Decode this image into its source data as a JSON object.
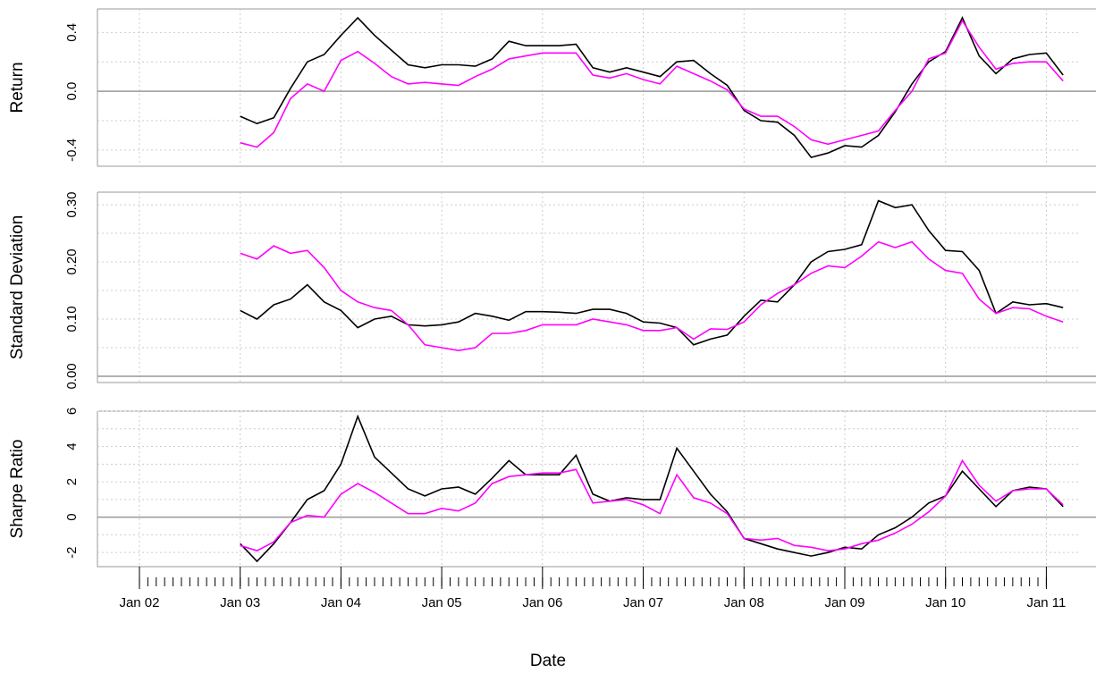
{
  "chart_data": {
    "type": "line",
    "xlabel": "Date",
    "x": [
      "2003-01",
      "2003-03",
      "2003-05",
      "2003-07",
      "2003-09",
      "2003-11",
      "2004-01",
      "2004-03",
      "2004-05",
      "2004-07",
      "2004-09",
      "2004-11",
      "2005-01",
      "2005-03",
      "2005-05",
      "2005-07",
      "2005-09",
      "2005-11",
      "2006-01",
      "2006-03",
      "2006-05",
      "2006-07",
      "2006-09",
      "2006-11",
      "2007-01",
      "2007-03",
      "2007-05",
      "2007-07",
      "2007-09",
      "2007-11",
      "2008-01",
      "2008-03",
      "2008-05",
      "2008-07",
      "2008-09",
      "2008-11",
      "2009-01",
      "2009-03",
      "2009-05",
      "2009-07",
      "2009-09",
      "2009-11",
      "2010-01",
      "2010-03",
      "2010-05",
      "2010-07",
      "2010-09",
      "2010-11",
      "2011-01",
      "2011-03"
    ],
    "xlim": [
      "2001-08",
      "2011-05"
    ],
    "xticks": [
      {
        "value": "2002-01",
        "label": "Jan 02"
      },
      {
        "value": "2003-01",
        "label": "Jan 03"
      },
      {
        "value": "2004-01",
        "label": "Jan 04"
      },
      {
        "value": "2005-01",
        "label": "Jan 05"
      },
      {
        "value": "2006-01",
        "label": "Jan 06"
      },
      {
        "value": "2007-01",
        "label": "Jan 07"
      },
      {
        "value": "2008-01",
        "label": "Jan 08"
      },
      {
        "value": "2009-01",
        "label": "Jan 09"
      },
      {
        "value": "2010-01",
        "label": "Jan 10"
      },
      {
        "value": "2011-01",
        "label": "Jan 11"
      }
    ],
    "grid": true,
    "panels": [
      {
        "ylabel": "Return",
        "ylim": [
          -0.51,
          0.56
        ],
        "hline": 0,
        "yticks": [
          {
            "value": -0.4,
            "label": "-0.4"
          },
          {
            "value": 0,
            "label": "0.0"
          },
          {
            "value": 0.4,
            "label": "0.4"
          }
        ],
        "minor_yticks": [
          -0.2,
          0.2
        ],
        "series": [
          {
            "color": "#000000",
            "values": [
              -0.17,
              -0.22,
              -0.18,
              0.02,
              0.2,
              0.25,
              0.38,
              0.5,
              0.38,
              0.28,
              0.18,
              0.16,
              0.18,
              0.18,
              0.17,
              0.22,
              0.34,
              0.31,
              0.31,
              0.31,
              0.32,
              0.16,
              0.13,
              0.16,
              0.13,
              0.1,
              0.2,
              0.21,
              0.12,
              0.04,
              -0.13,
              -0.2,
              -0.21,
              -0.3,
              -0.45,
              -0.42,
              -0.37,
              -0.38,
              -0.3,
              -0.14,
              0.05,
              0.2,
              0.27,
              0.5,
              0.24,
              0.12,
              0.22,
              0.25,
              0.26,
              0.11
            ]
          },
          {
            "color": "#ff00ff",
            "values": [
              -0.35,
              -0.38,
              -0.28,
              -0.05,
              0.05,
              0.0,
              0.21,
              0.27,
              0.19,
              0.1,
              0.05,
              0.06,
              0.05,
              0.04,
              0.1,
              0.15,
              0.22,
              0.24,
              0.26,
              0.26,
              0.26,
              0.11,
              0.09,
              0.12,
              0.08,
              0.05,
              0.17,
              0.12,
              0.07,
              0.01,
              -0.12,
              -0.17,
              -0.17,
              -0.24,
              -0.33,
              -0.36,
              -0.33,
              -0.3,
              -0.27,
              -0.13,
              0.0,
              0.22,
              0.26,
              0.48,
              0.3,
              0.15,
              0.19,
              0.2,
              0.2,
              0.07
            ]
          }
        ]
      },
      {
        "ylabel": "Standard Deviation",
        "ylim": [
          -0.011,
          0.322
        ],
        "hline": 0,
        "yticks": [
          {
            "value": 0,
            "label": "0.00"
          },
          {
            "value": 0.1,
            "label": "0.10"
          },
          {
            "value": 0.2,
            "label": "0.20"
          },
          {
            "value": 0.3,
            "label": "0.30"
          }
        ],
        "minor_yticks": [
          0.05,
          0.15,
          0.25
        ],
        "series": [
          {
            "color": "#000000",
            "values": [
              0.115,
              0.1,
              0.125,
              0.135,
              0.16,
              0.13,
              0.115,
              0.085,
              0.1,
              0.105,
              0.09,
              0.088,
              0.09,
              0.095,
              0.11,
              0.105,
              0.098,
              0.113,
              0.113,
              0.112,
              0.11,
              0.117,
              0.117,
              0.11,
              0.095,
              0.093,
              0.085,
              0.055,
              0.065,
              0.072,
              0.105,
              0.133,
              0.13,
              0.16,
              0.2,
              0.218,
              0.222,
              0.23,
              0.307,
              0.295,
              0.3,
              0.255,
              0.22,
              0.218,
              0.185,
              0.11,
              0.13,
              0.125,
              0.127,
              0.12
            ]
          },
          {
            "color": "#ff00ff",
            "values": [
              0.215,
              0.205,
              0.228,
              0.215,
              0.22,
              0.19,
              0.15,
              0.13,
              0.12,
              0.115,
              0.09,
              0.055,
              0.05,
              0.045,
              0.05,
              0.075,
              0.075,
              0.08,
              0.09,
              0.09,
              0.09,
              0.1,
              0.095,
              0.09,
              0.08,
              0.08,
              0.085,
              0.065,
              0.083,
              0.082,
              0.095,
              0.125,
              0.145,
              0.16,
              0.18,
              0.193,
              0.19,
              0.21,
              0.235,
              0.225,
              0.235,
              0.205,
              0.185,
              0.18,
              0.135,
              0.11,
              0.12,
              0.118,
              0.105,
              0.095
            ]
          }
        ]
      },
      {
        "ylabel": "Sharpe Ratio",
        "ylim": [
          -2.8,
          6.0
        ],
        "hline": 0,
        "yticks": [
          -2,
          0,
          2,
          4,
          6
        ],
        "minor_yticks": [
          -1,
          1,
          3,
          5
        ],
        "series": [
          {
            "color": "#000000",
            "values": [
              -1.5,
              -2.5,
              -1.5,
              -0.3,
              1.0,
              1.5,
              3.0,
              5.7,
              3.4,
              2.5,
              1.6,
              1.2,
              1.6,
              1.7,
              1.3,
              2.2,
              3.2,
              2.4,
              2.4,
              2.4,
              3.5,
              1.3,
              0.9,
              1.1,
              1.0,
              1.0,
              3.9,
              2.6,
              1.3,
              0.3,
              -1.2,
              -1.5,
              -1.8,
              -2.0,
              -2.2,
              -2.0,
              -1.7,
              -1.8,
              -1.0,
              -0.6,
              0.0,
              0.8,
              1.2,
              2.6,
              1.6,
              0.6,
              1.5,
              1.7,
              1.6,
              0.6
            ]
          },
          {
            "color": "#ff00ff",
            "values": [
              -1.6,
              -1.9,
              -1.4,
              -0.3,
              0.1,
              0.0,
              1.3,
              1.9,
              1.4,
              0.8,
              0.2,
              0.2,
              0.5,
              0.35,
              0.8,
              1.9,
              2.3,
              2.4,
              2.5,
              2.5,
              2.7,
              0.8,
              0.9,
              1.0,
              0.7,
              0.2,
              2.4,
              1.1,
              0.8,
              0.2,
              -1.2,
              -1.3,
              -1.2,
              -1.6,
              -1.7,
              -1.9,
              -1.8,
              -1.5,
              -1.3,
              -0.9,
              -0.4,
              0.3,
              1.2,
              3.2,
              1.8,
              0.9,
              1.5,
              1.6,
              1.6,
              0.7
            ]
          }
        ]
      }
    ]
  }
}
